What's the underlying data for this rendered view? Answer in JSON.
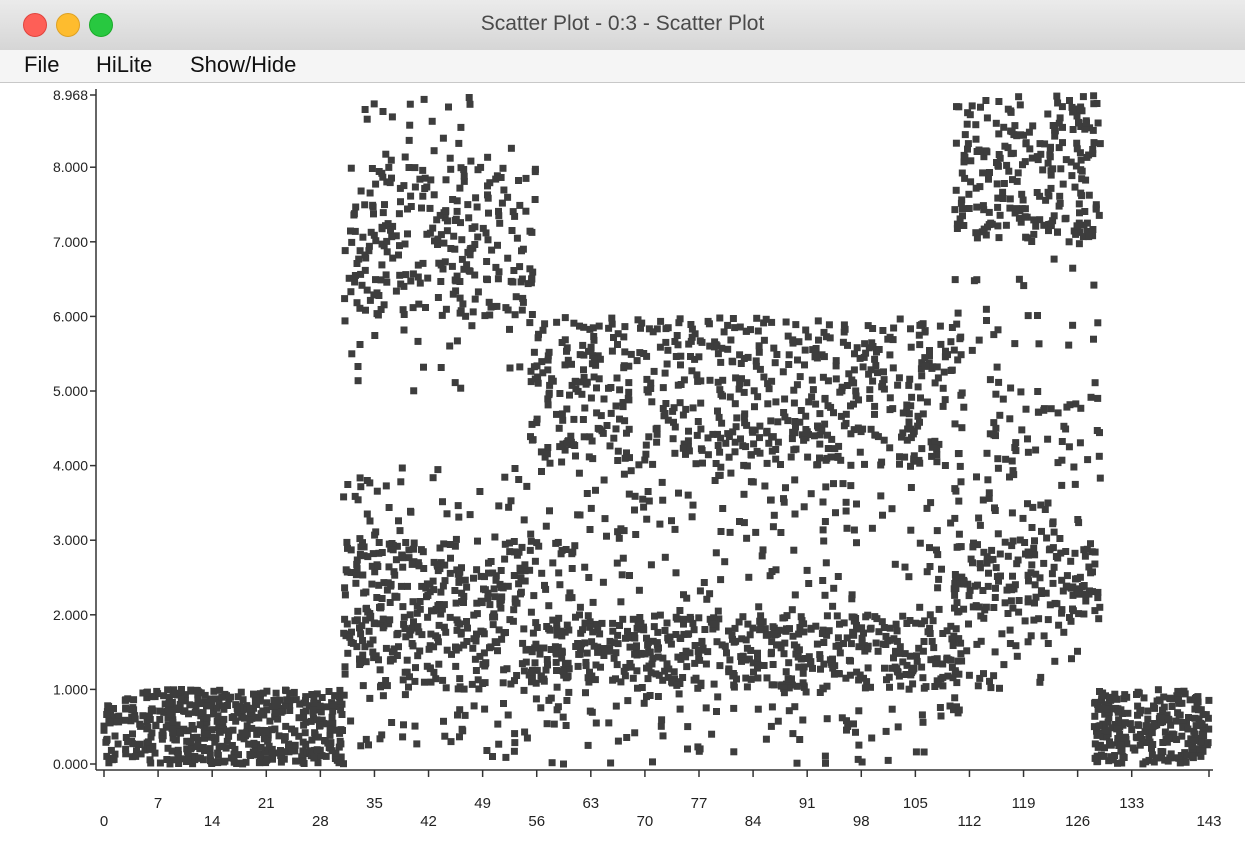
{
  "window": {
    "title": "Scatter Plot - 0:3 - Scatter Plot"
  },
  "menu": {
    "items": [
      {
        "label": "File",
        "name": "menu-file"
      },
      {
        "label": "HiLite",
        "name": "menu-hilite"
      },
      {
        "label": "Show/Hide",
        "name": "menu-show-hide"
      }
    ]
  },
  "colors": {
    "point": "#3d3d3d",
    "axis": "#333333",
    "close": "#fe5f57",
    "minimize": "#febc2e",
    "zoom": "#28c840"
  },
  "chart_data": {
    "type": "scatter",
    "xlim": [
      0,
      143
    ],
    "ylim": [
      0,
      8.968
    ],
    "x_ticks_upper": [
      "7",
      "21",
      "35",
      "49",
      "63",
      "77",
      "91",
      "105",
      "119",
      "133"
    ],
    "x_ticks_lower": [
      "0",
      "14",
      "28",
      "42",
      "56",
      "70",
      "84",
      "98",
      "112",
      "126",
      "143"
    ],
    "y_ticks": [
      "0.000",
      "1.000",
      "2.000",
      "3.000",
      "4.000",
      "5.000",
      "6.000",
      "7.000",
      "8.000",
      "8.968"
    ],
    "clusters": [
      {
        "x_range": [
          0,
          31
        ],
        "y_range": [
          0,
          1.0
        ],
        "count": 520
      },
      {
        "x_range": [
          31,
          56
        ],
        "y_range": [
          6.0,
          8.0
        ],
        "count": 260
      },
      {
        "x_range": [
          31,
          53
        ],
        "y_range": [
          8.0,
          8.968
        ],
        "count": 24
      },
      {
        "x_range": [
          31,
          56
        ],
        "y_range": [
          2.0,
          3.0
        ],
        "count": 200
      },
      {
        "x_range": [
          31,
          56
        ],
        "y_range": [
          1.0,
          2.0
        ],
        "count": 180
      },
      {
        "x_range": [
          31,
          56
        ],
        "y_range": [
          0.0,
          1.0
        ],
        "count": 40
      },
      {
        "x_range": [
          31,
          56
        ],
        "y_range": [
          3.0,
          4.0
        ],
        "count": 40
      },
      {
        "x_range": [
          31,
          56
        ],
        "y_range": [
          5.0,
          6.0
        ],
        "count": 20
      },
      {
        "x_range": [
          55,
          111
        ],
        "y_range": [
          4.0,
          6.0
        ],
        "count": 620
      },
      {
        "x_range": [
          55,
          111
        ],
        "y_range": [
          1.0,
          2.0
        ],
        "count": 520
      },
      {
        "x_range": [
          55,
          111
        ],
        "y_range": [
          2.0,
          4.0
        ],
        "count": 180
      },
      {
        "x_range": [
          55,
          111
        ],
        "y_range": [
          0.0,
          1.0
        ],
        "count": 90
      },
      {
        "x_range": [
          110,
          129
        ],
        "y_range": [
          7.0,
          8.968
        ],
        "count": 240
      },
      {
        "x_range": [
          110,
          129
        ],
        "y_range": [
          2.0,
          3.0
        ],
        "count": 150
      },
      {
        "x_range": [
          110,
          129
        ],
        "y_range": [
          3.0,
          5.0
        ],
        "count": 90
      },
      {
        "x_range": [
          110,
          129
        ],
        "y_range": [
          5.0,
          7.0
        ],
        "count": 30
      },
      {
        "x_range": [
          110,
          129
        ],
        "y_range": [
          1.0,
          2.0
        ],
        "count": 40
      },
      {
        "x_range": [
          128,
          143
        ],
        "y_range": [
          0,
          1.0
        ],
        "count": 260
      }
    ]
  }
}
